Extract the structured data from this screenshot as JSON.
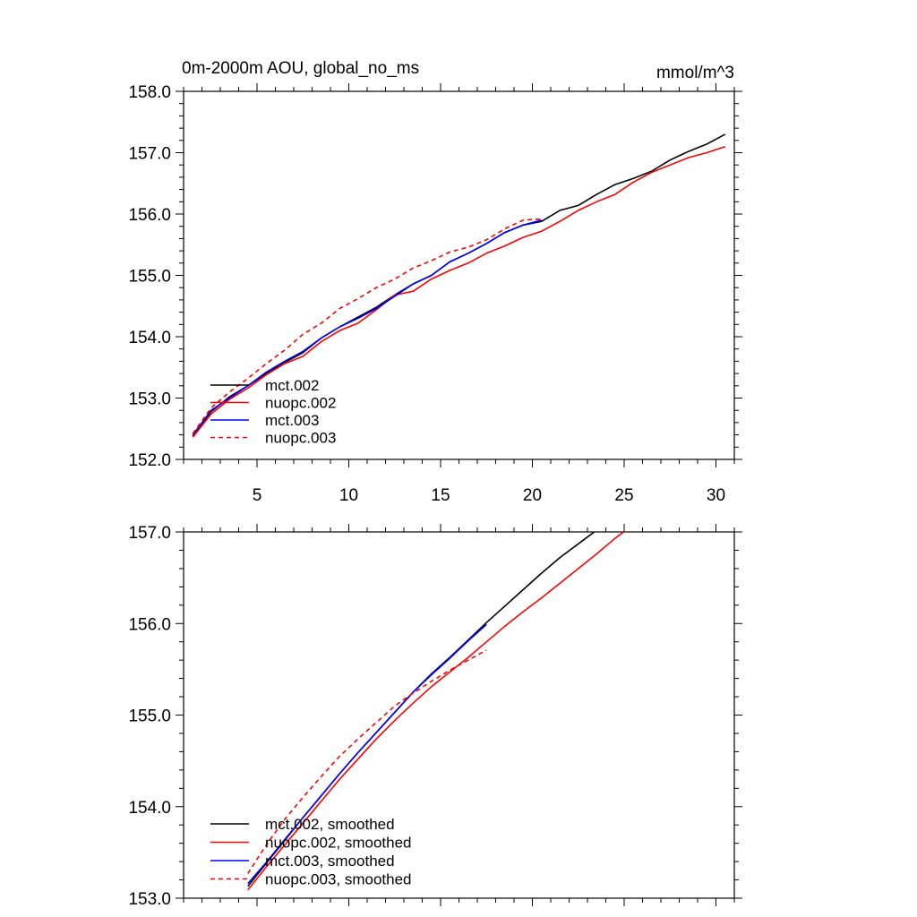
{
  "chart_data": [
    {
      "type": "line",
      "title": "0m-2000m AOU, global_no_ms",
      "units": "mmol/m^3",
      "xlim": [
        1,
        31
      ],
      "ylim": [
        152.0,
        158.0
      ],
      "xticks": [
        5,
        10,
        15,
        20,
        25,
        30
      ],
      "xtick_labels": [
        "5",
        "10",
        "15",
        "20",
        "25",
        "30"
      ],
      "yticks": [
        152.0,
        153.0,
        154.0,
        155.0,
        156.0,
        157.0,
        158.0
      ],
      "ytick_labels": [
        "152.0",
        "153.0",
        "154.0",
        "155.0",
        "156.0",
        "157.0",
        "158.0"
      ],
      "legend_position": "bottom-left",
      "series": [
        {
          "name": "mct.002",
          "color": "#000000",
          "dash": "solid",
          "x": [
            1.5,
            2.5,
            3.5,
            4.5,
            5.5,
            6.5,
            7.5,
            8.5,
            9.5,
            10.5,
            11.5,
            12.5,
            13.5,
            14.5,
            15.5,
            16.5,
            17.5,
            18.5,
            19.5,
            20.5,
            21.5,
            22.5,
            23.5,
            24.5,
            25.5,
            26.5,
            27.5,
            28.5,
            29.5,
            30.5
          ],
          "y": [
            152.38,
            152.78,
            153.02,
            153.2,
            153.4,
            153.58,
            153.74,
            153.98,
            154.16,
            154.32,
            154.48,
            154.68,
            154.86,
            155.0,
            155.22,
            155.36,
            155.52,
            155.7,
            155.82,
            155.88,
            156.06,
            156.14,
            156.32,
            156.48,
            156.58,
            156.7,
            156.88,
            157.02,
            157.14,
            157.3
          ]
        },
        {
          "name": "nuopc.002",
          "color": "#ff0000",
          "dash": "solid",
          "x": [
            1.5,
            2.5,
            3.5,
            4.5,
            5.5,
            6.5,
            7.5,
            8.5,
            9.5,
            10.5,
            11.5,
            12.5,
            13.5,
            14.5,
            15.5,
            16.5,
            17.5,
            18.5,
            19.5,
            20.5,
            21.5,
            22.5,
            23.5,
            24.5,
            25.5,
            26.5,
            27.5,
            28.5,
            29.5,
            30.5
          ],
          "y": [
            152.36,
            152.74,
            152.98,
            153.16,
            153.38,
            153.56,
            153.68,
            153.92,
            154.1,
            154.22,
            154.44,
            154.68,
            154.74,
            154.94,
            155.08,
            155.2,
            155.36,
            155.48,
            155.62,
            155.72,
            155.88,
            156.06,
            156.2,
            156.32,
            156.52,
            156.68,
            156.8,
            156.92,
            157.0,
            157.1
          ]
        },
        {
          "name": "mct.003",
          "color": "#0000ff",
          "dash": "solid",
          "x": [
            1.5,
            2.5,
            3.5,
            4.5,
            5.5,
            6.5,
            7.5,
            8.5,
            9.5,
            10.5,
            11.5,
            12.5,
            13.5,
            14.5,
            15.5,
            16.5,
            17.5,
            18.5,
            19.5,
            20.5
          ],
          "y": [
            152.4,
            152.8,
            153.0,
            153.2,
            153.42,
            153.6,
            153.76,
            153.98,
            154.16,
            154.3,
            154.46,
            154.66,
            154.86,
            155.0,
            155.22,
            155.36,
            155.52,
            155.7,
            155.82,
            155.9
          ]
        },
        {
          "name": "nuopc.003",
          "color": "#ff0000",
          "dash": "dashed",
          "x": [
            1.5,
            2.5,
            3.5,
            4.5,
            5.5,
            6.5,
            7.5,
            8.5,
            9.5,
            10.5,
            11.5,
            12.5,
            13.5,
            14.5,
            15.5,
            16.5,
            17.5,
            18.5,
            19.5,
            20.5
          ],
          "y": [
            152.42,
            152.84,
            153.1,
            153.32,
            153.56,
            153.78,
            154.04,
            154.22,
            154.46,
            154.62,
            154.8,
            154.94,
            155.12,
            155.24,
            155.38,
            155.46,
            155.58,
            155.76,
            155.9,
            155.92
          ]
        }
      ]
    },
    {
      "type": "line",
      "xlim": [
        1,
        31
      ],
      "ylim": [
        153.0,
        157.0
      ],
      "xticks": [
        5,
        10,
        15,
        20,
        25,
        30
      ],
      "yticks": [
        153.0,
        154.0,
        155.0,
        156.0,
        157.0
      ],
      "ytick_labels": [
        "153.0",
        "154.0",
        "155.0",
        "156.0",
        "157.0"
      ],
      "legend_position": "bottom-left",
      "series": [
        {
          "name": "mct.002, smoothed",
          "color": "#000000",
          "dash": "solid",
          "x": [
            4.5,
            5.5,
            6.5,
            7.5,
            8.5,
            9.5,
            10.5,
            11.5,
            12.5,
            13.5,
            14.5,
            15.5,
            16.5,
            17.5,
            18.5,
            19.5,
            20.5,
            21.5,
            22.5,
            23.5,
            24.5,
            25.5,
            26.5,
            27.5
          ],
          "y": [
            153.13,
            153.38,
            153.63,
            153.88,
            154.12,
            154.36,
            154.59,
            154.81,
            155.03,
            155.25,
            155.45,
            155.63,
            155.82,
            156.01,
            156.19,
            156.37,
            156.55,
            156.72,
            156.87,
            157.02,
            157.16,
            157.31,
            157.46,
            157.62
          ]
        },
        {
          "name": "nuopc.002, smoothed",
          "color": "#ff0000",
          "dash": "solid",
          "x": [
            4.5,
            5.5,
            6.5,
            7.5,
            8.5,
            9.5,
            10.5,
            11.5,
            12.5,
            13.5,
            14.5,
            15.5,
            16.5,
            17.5,
            18.5,
            19.5,
            20.5,
            21.5,
            22.5,
            23.5,
            24.5,
            25.5,
            26.5,
            27.5
          ],
          "y": [
            153.09,
            153.34,
            153.58,
            153.82,
            154.06,
            154.3,
            154.52,
            154.74,
            154.94,
            155.13,
            155.31,
            155.47,
            155.63,
            155.8,
            155.97,
            156.13,
            156.28,
            156.44,
            156.6,
            156.76,
            156.93,
            157.08,
            157.21,
            157.33
          ]
        },
        {
          "name": "mct.003, smoothed",
          "color": "#0000ff",
          "dash": "solid",
          "x": [
            4.5,
            5.5,
            6.5,
            7.5,
            8.5,
            9.5,
            10.5,
            11.5,
            12.5,
            13.5,
            14.5,
            15.5,
            16.5,
            17.5
          ],
          "y": [
            153.16,
            153.39,
            153.64,
            153.88,
            154.12,
            154.36,
            154.59,
            154.81,
            155.03,
            155.25,
            155.44,
            155.62,
            155.81,
            155.99
          ]
        },
        {
          "name": "nuopc.003, smoothed",
          "color": "#ff0000",
          "dash": "dashed",
          "x": [
            4.5,
            5.5,
            6.5,
            7.5,
            8.5,
            9.5,
            10.5,
            11.5,
            12.5,
            13.5,
            14.5,
            15.5,
            16.5,
            17.5
          ],
          "y": [
            153.27,
            153.58,
            153.86,
            154.1,
            154.33,
            154.55,
            154.74,
            154.92,
            155.1,
            155.24,
            155.37,
            155.49,
            155.6,
            155.71
          ]
        }
      ]
    }
  ]
}
